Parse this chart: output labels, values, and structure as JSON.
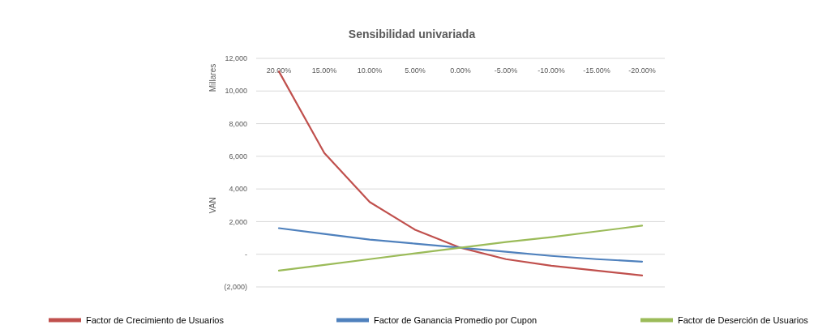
{
  "chart_data": {
    "type": "line",
    "title": "Sensibilidad univariada",
    "ylabel": "VAN",
    "annotations": [
      "Millares"
    ],
    "categories": [
      "20.00%",
      "15.00%",
      "10.00%",
      "5.00%",
      "0.00%",
      "-5.00%",
      "-10.00%",
      "-15.00%",
      "-20.00%"
    ],
    "series": [
      {
        "name": "Factor de Crecimiento de Usuarios",
        "color": "#c0504d",
        "values": [
          11200,
          6200,
          3200,
          1500,
          400,
          -300,
          -700,
          -1000,
          -1300
        ]
      },
      {
        "name": "Factor de Ganancia Promedio por Cupon",
        "color": "#4f81bd",
        "values": [
          1600,
          1250,
          900,
          650,
          400,
          150,
          -100,
          -300,
          -450
        ]
      },
      {
        "name": "Factor de Deserción de Usuarios",
        "color": "#9bbb59",
        "values": [
          -1000,
          -650,
          -300,
          50,
          400,
          750,
          1050,
          1400,
          1750
        ]
      }
    ],
    "ylim": [
      -2000,
      12000
    ],
    "yticks": [
      {
        "value": -2000,
        "label": "(2,000)"
      },
      {
        "value": 0,
        "label": "-"
      },
      {
        "value": 2000,
        "label": "2,000"
      },
      {
        "value": 4000,
        "label": "4,000"
      },
      {
        "value": 6000,
        "label": "6,000"
      },
      {
        "value": 8000,
        "label": "8,000"
      },
      {
        "value": 10000,
        "label": "10,000"
      },
      {
        "value": 12000,
        "label": "12,000"
      }
    ],
    "grid": "y",
    "legend": "bottom",
    "line_style": "solid",
    "marker": "none"
  }
}
